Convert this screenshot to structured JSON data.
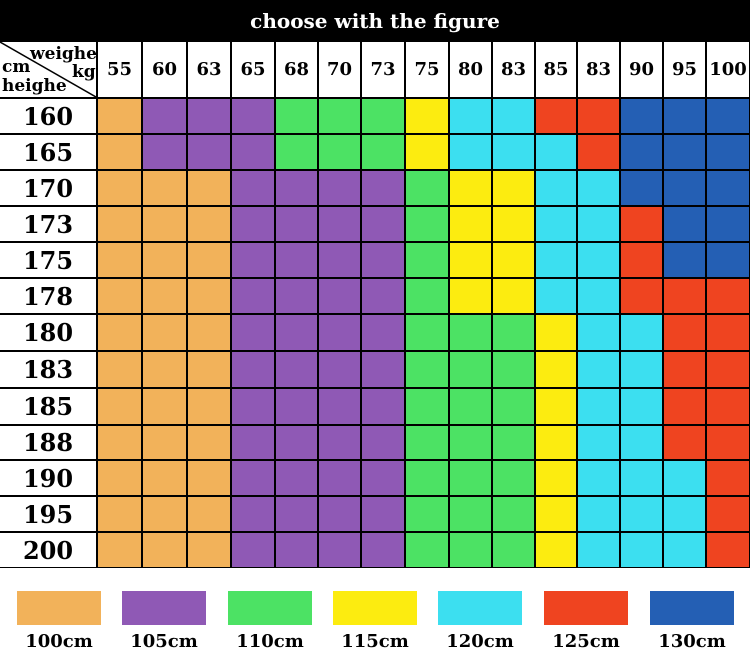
{
  "title": "choose with the figure",
  "corner": {
    "top_right": "weighe",
    "right_unit": "kg",
    "left_unit": "cm",
    "bottom_left": "heighe"
  },
  "colors": {
    "100cm": "#f2b25a",
    "105cm": "#8f59b5",
    "110cm": "#4ce264",
    "115cm": "#fcec10",
    "120cm": "#3cdff0",
    "125cm": "#ef4420",
    "130cm": "#245fb4"
  },
  "chart_data": {
    "type": "table",
    "weights_kg": [
      "55",
      "60",
      "63",
      "65",
      "68",
      "70",
      "73",
      "75",
      "80",
      "83",
      "85",
      "83",
      "90",
      "95",
      "100"
    ],
    "heights_cm": [
      "160",
      "165",
      "170",
      "173",
      "175",
      "178",
      "180",
      "183",
      "185",
      "188",
      "190",
      "195",
      "200"
    ],
    "size_grid": [
      [
        "100cm",
        "105cm",
        "105cm",
        "105cm",
        "110cm",
        "110cm",
        "110cm",
        "115cm",
        "120cm",
        "120cm",
        "125cm",
        "125cm",
        "130cm",
        "130cm",
        "130cm"
      ],
      [
        "100cm",
        "105cm",
        "105cm",
        "105cm",
        "110cm",
        "110cm",
        "110cm",
        "115cm",
        "120cm",
        "120cm",
        "120cm",
        "125cm",
        "130cm",
        "130cm",
        "130cm"
      ],
      [
        "100cm",
        "100cm",
        "100cm",
        "105cm",
        "105cm",
        "105cm",
        "105cm",
        "110cm",
        "115cm",
        "115cm",
        "120cm",
        "120cm",
        "130cm",
        "130cm",
        "130cm"
      ],
      [
        "100cm",
        "100cm",
        "100cm",
        "105cm",
        "105cm",
        "105cm",
        "105cm",
        "110cm",
        "115cm",
        "115cm",
        "120cm",
        "120cm",
        "125cm",
        "130cm",
        "130cm"
      ],
      [
        "100cm",
        "100cm",
        "100cm",
        "105cm",
        "105cm",
        "105cm",
        "105cm",
        "110cm",
        "115cm",
        "115cm",
        "120cm",
        "120cm",
        "125cm",
        "130cm",
        "130cm"
      ],
      [
        "100cm",
        "100cm",
        "100cm",
        "105cm",
        "105cm",
        "105cm",
        "105cm",
        "110cm",
        "115cm",
        "115cm",
        "120cm",
        "120cm",
        "125cm",
        "125cm",
        "125cm"
      ],
      [
        "100cm",
        "100cm",
        "100cm",
        "105cm",
        "105cm",
        "105cm",
        "105cm",
        "110cm",
        "110cm",
        "110cm",
        "115cm",
        "120cm",
        "120cm",
        "125cm",
        "125cm"
      ],
      [
        "100cm",
        "100cm",
        "100cm",
        "105cm",
        "105cm",
        "105cm",
        "105cm",
        "110cm",
        "110cm",
        "110cm",
        "115cm",
        "120cm",
        "120cm",
        "125cm",
        "125cm"
      ],
      [
        "100cm",
        "100cm",
        "100cm",
        "105cm",
        "105cm",
        "105cm",
        "105cm",
        "110cm",
        "110cm",
        "110cm",
        "115cm",
        "120cm",
        "120cm",
        "125cm",
        "125cm"
      ],
      [
        "100cm",
        "100cm",
        "100cm",
        "105cm",
        "105cm",
        "105cm",
        "105cm",
        "110cm",
        "110cm",
        "110cm",
        "115cm",
        "120cm",
        "120cm",
        "125cm",
        "125cm"
      ],
      [
        "100cm",
        "100cm",
        "100cm",
        "105cm",
        "105cm",
        "105cm",
        "105cm",
        "110cm",
        "110cm",
        "110cm",
        "115cm",
        "120cm",
        "120cm",
        "120cm",
        "125cm"
      ],
      [
        "100cm",
        "100cm",
        "100cm",
        "105cm",
        "105cm",
        "105cm",
        "105cm",
        "110cm",
        "110cm",
        "110cm",
        "115cm",
        "120cm",
        "120cm",
        "120cm",
        "125cm"
      ],
      [
        "100cm",
        "100cm",
        "100cm",
        "105cm",
        "105cm",
        "105cm",
        "105cm",
        "110cm",
        "110cm",
        "110cm",
        "115cm",
        "120cm",
        "120cm",
        "120cm",
        "125cm"
      ]
    ],
    "legend": [
      "100cm",
      "105cm",
      "110cm",
      "115cm",
      "120cm",
      "125cm",
      "130cm"
    ]
  }
}
